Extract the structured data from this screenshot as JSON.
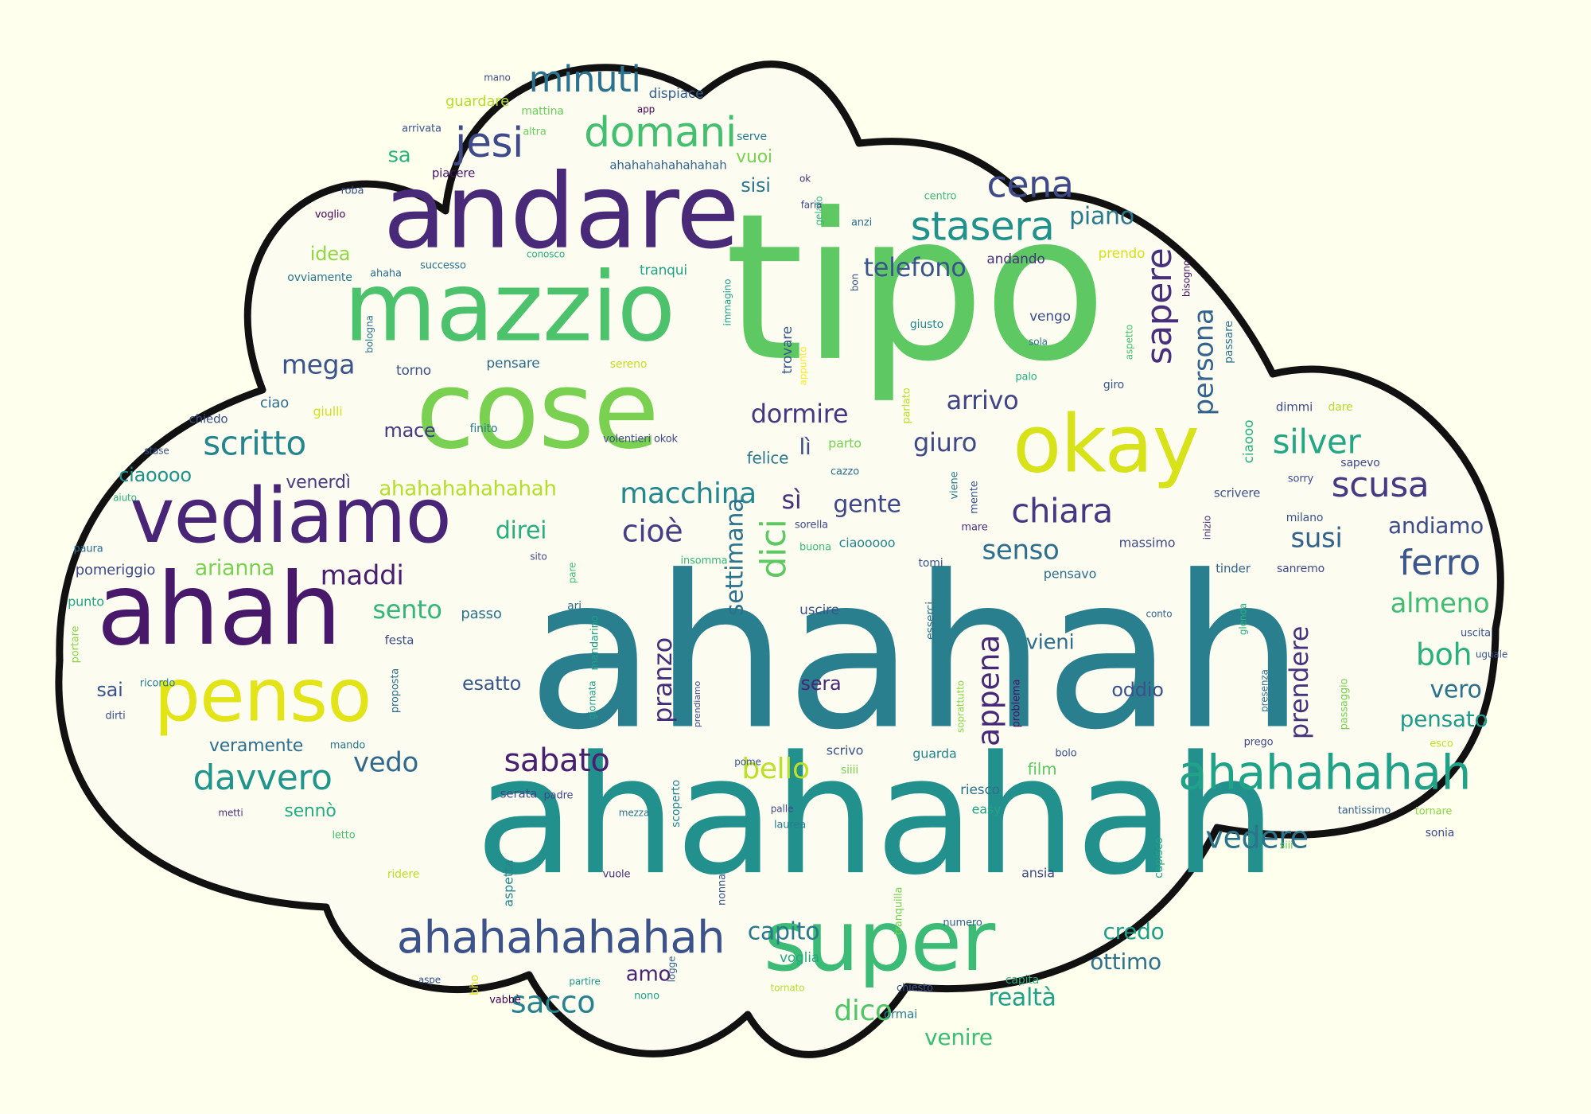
{
  "background_color": "#ffffee",
  "shape": {
    "fill": "#fcfdf0",
    "stroke": "#111111"
  },
  "palette": {
    "dark_purple": "#440154",
    "indigo": "#3b528b",
    "teal": "#21908c",
    "green": "#5ec962",
    "yellow": "#fde725"
  },
  "words": [
    {
      "text": "ahahah",
      "color": "#2a7f8e"
    },
    {
      "text": "ahahahah",
      "color": "#22908c"
    },
    {
      "text": "tipo",
      "color": "#5ec962"
    },
    {
      "text": "cose",
      "color": "#7ad151"
    },
    {
      "text": "andare",
      "color": "#482a78"
    },
    {
      "text": "mazzio",
      "color": "#4cc26c"
    },
    {
      "text": "ahah",
      "color": "#48186a"
    },
    {
      "text": "vediamo",
      "color": "#482576"
    },
    {
      "text": "penso",
      "color": "#e2e418"
    },
    {
      "text": "okay",
      "color": "#d8e219"
    },
    {
      "text": "super",
      "color": "#3bbb75"
    },
    {
      "text": "ahahahahah",
      "color": "#1fa287"
    },
    {
      "text": "ahahahahahah",
      "color": "#3b528b"
    },
    {
      "text": "domani",
      "color": "#44bf70"
    },
    {
      "text": "minuti",
      "color": "#2c728e"
    },
    {
      "text": "jesi",
      "color": "#3e4a89"
    },
    {
      "text": "cena",
      "color": "#3e4989"
    },
    {
      "text": "stasera",
      "color": "#21918c"
    },
    {
      "text": "sapere",
      "color": "#472f7d"
    },
    {
      "text": "persona",
      "color": "#33638d"
    },
    {
      "text": "telefono",
      "color": "#3a548c"
    },
    {
      "text": "piano",
      "color": "#2a788e"
    },
    {
      "text": "scritto",
      "color": "#25858e"
    },
    {
      "text": "mega",
      "color": "#3b528b"
    },
    {
      "text": "dormire",
      "color": "#453882"
    },
    {
      "text": "arrivo",
      "color": "#414487"
    },
    {
      "text": "giuro",
      "color": "#3e4989"
    },
    {
      "text": "silver",
      "color": "#22a785"
    },
    {
      "text": "scusa",
      "color": "#443a83"
    },
    {
      "text": "chiara",
      "color": "#453781"
    },
    {
      "text": "macchina",
      "color": "#24868e"
    },
    {
      "text": "sì",
      "color": "#46337e"
    },
    {
      "text": "gente",
      "color": "#3f4788"
    },
    {
      "text": "cioè",
      "color": "#433e85"
    },
    {
      "text": "ahahahahahahah",
      "color": "#b5de2b"
    },
    {
      "text": "direi",
      "color": "#29af7f"
    },
    {
      "text": "maddi",
      "color": "#481f70"
    },
    {
      "text": "arianna",
      "color": "#7ad151"
    },
    {
      "text": "sento",
      "color": "#35b779"
    },
    {
      "text": "senso",
      "color": "#2e6e8e"
    },
    {
      "text": "susi",
      "color": "#33638d"
    },
    {
      "text": "ferro",
      "color": "#3a548c"
    },
    {
      "text": "almeno",
      "color": "#40bd72"
    },
    {
      "text": "boh",
      "color": "#2ab07f"
    },
    {
      "text": "andiamo",
      "color": "#3e4c8a"
    },
    {
      "text": "dici",
      "color": "#5ec962"
    },
    {
      "text": "settimana",
      "color": "#2c728e"
    },
    {
      "text": "appena",
      "color": "#482878"
    },
    {
      "text": "pranzo",
      "color": "#472d7b"
    },
    {
      "text": "prendere",
      "color": "#46337e"
    },
    {
      "text": "vero",
      "color": "#2d708e"
    },
    {
      "text": "pensato",
      "color": "#1f998a"
    },
    {
      "text": "sabato",
      "color": "#482071"
    },
    {
      "text": "bello",
      "color": "#bddf26"
    },
    {
      "text": "davvero",
      "color": "#1f958b"
    },
    {
      "text": "vedo",
      "color": "#30688e"
    },
    {
      "text": "vedere",
      "color": "#2c738e"
    },
    {
      "text": "sacco",
      "color": "#26828e"
    },
    {
      "text": "dico",
      "color": "#52c569"
    },
    {
      "text": "capito",
      "color": "#2a788e"
    },
    {
      "text": "realtà",
      "color": "#1fa088"
    },
    {
      "text": "venire",
      "color": "#3dbc74"
    },
    {
      "text": "credo",
      "color": "#1f9e89"
    },
    {
      "text": "ottimo",
      "color": "#2d718e"
    },
    {
      "text": "amo",
      "color": "#482374"
    },
    {
      "text": "sa",
      "color": "#2db27d"
    },
    {
      "text": "vuoi",
      "color": "#7ad151"
    },
    {
      "text": "sisi",
      "color": "#2c738e"
    },
    {
      "text": "idea",
      "color": "#90d743"
    },
    {
      "text": "mace",
      "color": "#443983"
    },
    {
      "text": "ciaoooo",
      "color": "#20928c"
    },
    {
      "text": "venerdì",
      "color": "#443b84"
    },
    {
      "text": "lì",
      "color": "#3d4e8a"
    },
    {
      "text": "felice",
      "color": "#2a778e"
    },
    {
      "text": "vieni",
      "color": "#2e6d8e"
    },
    {
      "text": "esatto",
      "color": "#39568c"
    },
    {
      "text": "sera",
      "color": "#482677"
    },
    {
      "text": "oddio",
      "color": "#3c508b"
    },
    {
      "text": "sai",
      "color": "#3a548c"
    },
    {
      "text": "veramente",
      "color": "#2e6e8e"
    },
    {
      "text": "ahahahahahahahah",
      "color": "#33638d"
    },
    {
      "text": "piacere",
      "color": "#481668"
    },
    {
      "text": "guardare",
      "color": "#b5de2b"
    },
    {
      "text": "dispiace",
      "color": "#355f8d"
    },
    {
      "text": "mattina",
      "color": "#6ccd5a"
    },
    {
      "text": "app",
      "color": "#440154"
    },
    {
      "text": "altra",
      "color": "#6ccd5a"
    },
    {
      "text": "serve",
      "color": "#287c8e"
    },
    {
      "text": "arrivata",
      "color": "#3a548c"
    },
    {
      "text": "mano",
      "color": "#3e4a89"
    },
    {
      "text": "roba",
      "color": "#3b528b"
    },
    {
      "text": "voglio",
      "color": "#440154"
    },
    {
      "text": "ovviamente",
      "color": "#2a768e"
    },
    {
      "text": "ahaha",
      "color": "#2e6e8e"
    },
    {
      "text": "successo",
      "color": "#2c728e"
    },
    {
      "text": "conosco",
      "color": "#2ab07f"
    },
    {
      "text": "tranqui",
      "color": "#20a386"
    },
    {
      "text": "andando",
      "color": "#46327e"
    },
    {
      "text": "prendo",
      "color": "#d8e219"
    },
    {
      "text": "bisogno",
      "color": "#471365"
    },
    {
      "text": "aspetto",
      "color": "#46c06f"
    },
    {
      "text": "passare",
      "color": "#2c738e"
    },
    {
      "text": "giusto",
      "color": "#25848e"
    },
    {
      "text": "vengo",
      "color": "#3d4d8a"
    },
    {
      "text": "sola",
      "color": "#2d708e"
    },
    {
      "text": "torno",
      "color": "#3b528b"
    },
    {
      "text": "pensare",
      "color": "#2e6d8e"
    },
    {
      "text": "sereno",
      "color": "#c2df23"
    },
    {
      "text": "trovare",
      "color": "#3a548c"
    },
    {
      "text": "appunto",
      "color": "#fde725"
    },
    {
      "text": "immagino",
      "color": "#1f9e89"
    },
    {
      "text": "bologna",
      "color": "#2c728e"
    },
    {
      "text": "ciao",
      "color": "#2f6c8e"
    },
    {
      "text": "giulli",
      "color": "#d0e11c"
    },
    {
      "text": "chiedo",
      "color": "#3c4f8a"
    },
    {
      "text": "finito",
      "color": "#29798e"
    },
    {
      "text": "stase",
      "color": "#3b528b"
    },
    {
      "text": "aiuto",
      "color": "#2ab07f"
    },
    {
      "text": "paura",
      "color": "#2e6e8e"
    },
    {
      "text": "pomeriggio",
      "color": "#3e4989"
    },
    {
      "text": "punto",
      "color": "#20a386"
    },
    {
      "text": "portare",
      "color": "#8bd646"
    },
    {
      "text": "festa",
      "color": "#3e4989"
    },
    {
      "text": "ricordo",
      "color": "#287d8e"
    },
    {
      "text": "dirti",
      "color": "#3c4f8a"
    },
    {
      "text": "mando",
      "color": "#2a788e"
    },
    {
      "text": "metti",
      "color": "#46327e"
    },
    {
      "text": "sennò",
      "color": "#25ab82"
    },
    {
      "text": "letto",
      "color": "#4ac16d"
    },
    {
      "text": "ridere",
      "color": "#bddf26"
    },
    {
      "text": "aspetta",
      "color": "#25848e"
    },
    {
      "text": "vuole",
      "color": "#46327e"
    },
    {
      "text": "nonna",
      "color": "#3b528b"
    },
    {
      "text": "aspe",
      "color": "#3a548c"
    },
    {
      "text": "bho",
      "color": "#e2e418"
    },
    {
      "text": "vabbè",
      "color": "#440154"
    },
    {
      "text": "partire",
      "color": "#1f948c"
    },
    {
      "text": "logge",
      "color": "#34618d"
    },
    {
      "text": "nono",
      "color": "#1fa287"
    },
    {
      "text": "voglia",
      "color": "#22a884"
    },
    {
      "text": "tornato",
      "color": "#b5de2b"
    },
    {
      "text": "chiesto",
      "color": "#3b528b"
    },
    {
      "text": "capita",
      "color": "#2ab07f"
    },
    {
      "text": "ormai",
      "color": "#287d8e"
    },
    {
      "text": "numero",
      "color": "#34618d"
    },
    {
      "text": "tranquilla",
      "color": "#7ad151"
    },
    {
      "text": "ansia",
      "color": "#3e4989"
    },
    {
      "text": "capisco",
      "color": "#1fa287"
    },
    {
      "text": "film",
      "color": "#5ec962"
    },
    {
      "text": "bolo",
      "color": "#3a548c"
    },
    {
      "text": "easy",
      "color": "#20a386"
    },
    {
      "text": "riesco",
      "color": "#2d708e"
    },
    {
      "text": "guarda",
      "color": "#25848e"
    },
    {
      "text": "siiii",
      "color": "#7ad151"
    },
    {
      "text": "scrivo",
      "color": "#3b528b"
    },
    {
      "text": "pome",
      "color": "#3b528b"
    },
    {
      "text": "palle",
      "color": "#3e4989"
    },
    {
      "text": "laurea",
      "color": "#287d8e"
    },
    {
      "text": "mezza",
      "color": "#2c728e"
    },
    {
      "text": "padre",
      "color": "#3e4989"
    },
    {
      "text": "serata",
      "color": "#3e4989"
    },
    {
      "text": "scoperto",
      "color": "#26818e"
    },
    {
      "text": "giornata",
      "color": "#1fa287"
    },
    {
      "text": "mandarino",
      "color": "#1f9e89"
    },
    {
      "text": "proposta",
      "color": "#2d708e"
    },
    {
      "text": "passo",
      "color": "#2c728e"
    },
    {
      "text": "ari",
      "color": "#2e6e8e"
    },
    {
      "text": "sito",
      "color": "#3e4989"
    },
    {
      "text": "pare",
      "color": "#3dbc74"
    },
    {
      "text": "insomma",
      "color": "#35b779"
    },
    {
      "text": "buona",
      "color": "#3dbc74"
    },
    {
      "text": "sorella",
      "color": "#3e4989"
    },
    {
      "text": "ciaooooo",
      "color": "#25848e"
    },
    {
      "text": "tomi",
      "color": "#3b528b"
    },
    {
      "text": "uscire",
      "color": "#3a548c"
    },
    {
      "text": "esserci",
      "color": "#2d708e"
    },
    {
      "text": "pensavo",
      "color": "#2e6e8e"
    },
    {
      "text": "massimo",
      "color": "#3e4989"
    },
    {
      "text": "conto",
      "color": "#33638d"
    },
    {
      "text": "tinder",
      "color": "#33638d"
    },
    {
      "text": "sanremo",
      "color": "#3e4989"
    },
    {
      "text": "milano",
      "color": "#3b528b"
    },
    {
      "text": "inizio",
      "color": "#46327e"
    },
    {
      "text": "mare",
      "color": "#46327e"
    },
    {
      "text": "viene",
      "color": "#2a788e"
    },
    {
      "text": "mente",
      "color": "#3a548c"
    },
    {
      "text": "cazzo",
      "color": "#2e6e8e"
    },
    {
      "text": "parto",
      "color": "#7ad151"
    },
    {
      "text": "volentieri okok",
      "color": "#3e4989"
    },
    {
      "text": "parlato",
      "color": "#bddf26"
    },
    {
      "text": "palo",
      "color": "#29af7f"
    },
    {
      "text": "giro",
      "color": "#3b528b"
    },
    {
      "text": "dimmi",
      "color": "#3e4989"
    },
    {
      "text": "dare",
      "color": "#b5de2b"
    },
    {
      "text": "ciaooo",
      "color": "#2ab07f"
    },
    {
      "text": "sapevo",
      "color": "#3e4989"
    },
    {
      "text": "sorry",
      "color": "#3e4989"
    },
    {
      "text": "scrivere",
      "color": "#3b528b"
    },
    {
      "text": "uscita",
      "color": "#3b528b"
    },
    {
      "text": "uguale",
      "color": "#3b528b"
    },
    {
      "text": "glenda",
      "color": "#2ab07f"
    },
    {
      "text": "presenza",
      "color": "#2e6e8e"
    },
    {
      "text": "prego",
      "color": "#3e4989"
    },
    {
      "text": "esco",
      "color": "#c2df23"
    },
    {
      "text": "passaggio",
      "color": "#7ad151"
    },
    {
      "text": "tantissimo",
      "color": "#33638d"
    },
    {
      "text": "tornare",
      "color": "#8bd646"
    },
    {
      "text": "sonia",
      "color": "#3e4989"
    },
    {
      "text": "siii",
      "color": "#6ccd5a"
    },
    {
      "text": "soprattutto",
      "color": "#8bd646"
    },
    {
      "text": "problema",
      "color": "#471365"
    },
    {
      "text": "prendiamo",
      "color": "#3e4989"
    },
    {
      "text": "centro",
      "color": "#3dbc74"
    },
    {
      "text": "anzi",
      "color": "#2d708e"
    },
    {
      "text": "gelato",
      "color": "#35b779"
    },
    {
      "text": "bon",
      "color": "#3b528b"
    },
    {
      "text": "faria",
      "color": "#3e4989"
    },
    {
      "text": "ok",
      "color": "#46327e"
    }
  ]
}
